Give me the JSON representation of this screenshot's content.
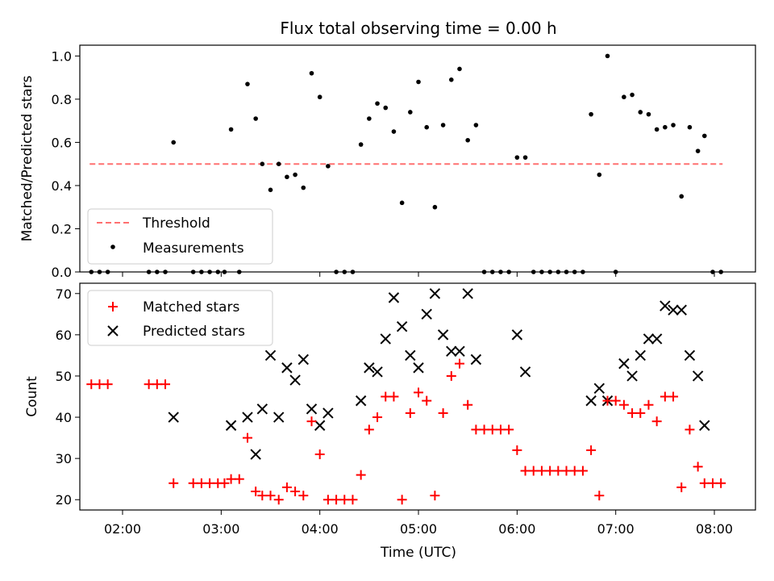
{
  "colors": {
    "matched": "#ff0000",
    "predicted": "#000000",
    "threshold": "#ff7070",
    "measurement": "#000000"
  },
  "chart_data": [
    {
      "panel": "top",
      "type": "scatter",
      "title": "Flux total observing time = 0.00 h",
      "xlabel": "",
      "ylabel": "Matched/Predicted stars",
      "xlim": [
        "01:34",
        "08:25"
      ],
      "ylim": [
        0,
        1.05
      ],
      "yticks": [
        "0.0",
        "0.2",
        "0.4",
        "0.6",
        "0.8",
        "1.0"
      ],
      "legend": {
        "placement": "lower-left",
        "entries": [
          "Threshold",
          "Measurements"
        ]
      },
      "threshold": {
        "label": "Threshold",
        "value": 0.5,
        "x": [
          "01:40",
          "08:05"
        ]
      },
      "series": [
        {
          "name": "Measurements",
          "points": [
            [
              "01:41",
              0
            ],
            [
              "01:46",
              0
            ],
            [
              "01:51",
              0
            ],
            [
              "02:16",
              0
            ],
            [
              "02:21",
              0
            ],
            [
              "02:26",
              0
            ],
            [
              "02:31",
              0.6
            ],
            [
              "02:43",
              0
            ],
            [
              "02:48",
              0
            ],
            [
              "02:53",
              0
            ],
            [
              "02:58",
              0
            ],
            [
              "03:02",
              0
            ],
            [
              "03:06",
              0.66
            ],
            [
              "03:11",
              0
            ],
            [
              "03:16",
              0.87
            ],
            [
              "03:21",
              0.71
            ],
            [
              "03:25",
              0.5
            ],
            [
              "03:30",
              0.38
            ],
            [
              "03:35",
              0.5
            ],
            [
              "03:40",
              0.44
            ],
            [
              "03:45",
              0.45
            ],
            [
              "03:50",
              0.39
            ],
            [
              "03:55",
              0.92
            ],
            [
              "04:00",
              0.81
            ],
            [
              "04:05",
              0.49
            ],
            [
              "04:10",
              0
            ],
            [
              "04:15",
              0
            ],
            [
              "04:20",
              0
            ],
            [
              "04:25",
              0.59
            ],
            [
              "04:30",
              0.71
            ],
            [
              "04:35",
              0.78
            ],
            [
              "04:40",
              0.76
            ],
            [
              "04:45",
              0.65
            ],
            [
              "04:50",
              0.32
            ],
            [
              "04:55",
              0.74
            ],
            [
              "05:00",
              0.88
            ],
            [
              "05:05",
              0.67
            ],
            [
              "05:10",
              0.3
            ],
            [
              "05:15",
              0.68
            ],
            [
              "05:20",
              0.89
            ],
            [
              "05:25",
              0.94
            ],
            [
              "05:30",
              0.61
            ],
            [
              "05:35",
              0.68
            ],
            [
              "05:40",
              0
            ],
            [
              "05:45",
              0
            ],
            [
              "05:50",
              0
            ],
            [
              "05:55",
              0
            ],
            [
              "06:00",
              0.53
            ],
            [
              "06:05",
              0.53
            ],
            [
              "06:10",
              0
            ],
            [
              "06:15",
              0
            ],
            [
              "06:20",
              0
            ],
            [
              "06:25",
              0
            ],
            [
              "06:30",
              0
            ],
            [
              "06:35",
              0
            ],
            [
              "06:40",
              0
            ],
            [
              "06:45",
              0.73
            ],
            [
              "06:50",
              0.45
            ],
            [
              "06:55",
              1.0
            ],
            [
              "07:00",
              0
            ],
            [
              "07:05",
              0.81
            ],
            [
              "07:10",
              0.82
            ],
            [
              "07:15",
              0.74
            ],
            [
              "07:20",
              0.73
            ],
            [
              "07:25",
              0.66
            ],
            [
              "07:30",
              0.67
            ],
            [
              "07:35",
              0.68
            ],
            [
              "07:40",
              0.35
            ],
            [
              "07:45",
              0.67
            ],
            [
              "07:50",
              0.56
            ],
            [
              "07:54",
              0.63
            ],
            [
              "07:59",
              0
            ],
            [
              "08:04",
              0
            ]
          ]
        }
      ]
    },
    {
      "panel": "bottom",
      "type": "scatter",
      "title": "",
      "xlabel": "Time (UTC)",
      "ylabel": "Count",
      "xlim": [
        "01:34",
        "08:25"
      ],
      "ylim": [
        17.5,
        72.5
      ],
      "xticks": [
        "02:00",
        "03:00",
        "04:00",
        "05:00",
        "06:00",
        "07:00",
        "08:00"
      ],
      "yticks": [
        "20",
        "30",
        "40",
        "50",
        "60",
        "70"
      ],
      "legend": {
        "placement": "top-left",
        "entries": [
          "Matched stars",
          "Predicted stars"
        ]
      },
      "series": [
        {
          "name": "Matched stars",
          "marker": "plus",
          "points": [
            [
              "01:41",
              48
            ],
            [
              "01:46",
              48
            ],
            [
              "01:51",
              48
            ],
            [
              "02:16",
              48
            ],
            [
              "02:21",
              48
            ],
            [
              "02:26",
              48
            ],
            [
              "02:31",
              24
            ],
            [
              "02:43",
              24
            ],
            [
              "02:48",
              24
            ],
            [
              "02:53",
              24
            ],
            [
              "02:58",
              24
            ],
            [
              "03:02",
              24
            ],
            [
              "03:06",
              25
            ],
            [
              "03:11",
              25
            ],
            [
              "03:16",
              35
            ],
            [
              "03:21",
              22
            ],
            [
              "03:25",
              21
            ],
            [
              "03:30",
              21
            ],
            [
              "03:35",
              20
            ],
            [
              "03:40",
              23
            ],
            [
              "03:45",
              22
            ],
            [
              "03:50",
              21
            ],
            [
              "03:55",
              39
            ],
            [
              "04:00",
              31
            ],
            [
              "04:05",
              20
            ],
            [
              "04:10",
              20
            ],
            [
              "04:15",
              20
            ],
            [
              "04:20",
              20
            ],
            [
              "04:25",
              26
            ],
            [
              "04:30",
              37
            ],
            [
              "04:35",
              40
            ],
            [
              "04:40",
              45
            ],
            [
              "04:45",
              45
            ],
            [
              "04:50",
              20
            ],
            [
              "04:55",
              41
            ],
            [
              "05:00",
              46
            ],
            [
              "05:05",
              44
            ],
            [
              "05:10",
              21
            ],
            [
              "05:15",
              41
            ],
            [
              "05:20",
              50
            ],
            [
              "05:25",
              53
            ],
            [
              "05:30",
              43
            ],
            [
              "05:35",
              37
            ],
            [
              "05:40",
              37
            ],
            [
              "05:45",
              37
            ],
            [
              "05:50",
              37
            ],
            [
              "05:55",
              37
            ],
            [
              "06:00",
              32
            ],
            [
              "06:05",
              27
            ],
            [
              "06:10",
              27
            ],
            [
              "06:15",
              27
            ],
            [
              "06:20",
              27
            ],
            [
              "06:25",
              27
            ],
            [
              "06:30",
              27
            ],
            [
              "06:35",
              27
            ],
            [
              "06:40",
              27
            ],
            [
              "06:45",
              32
            ],
            [
              "06:50",
              21
            ],
            [
              "06:55",
              44
            ],
            [
              "07:00",
              44
            ],
            [
              "07:05",
              43
            ],
            [
              "07:10",
              41
            ],
            [
              "07:15",
              41
            ],
            [
              "07:20",
              43
            ],
            [
              "07:25",
              39
            ],
            [
              "07:30",
              45
            ],
            [
              "07:35",
              45
            ],
            [
              "07:40",
              23
            ],
            [
              "07:45",
              37
            ],
            [
              "07:50",
              28
            ],
            [
              "07:54",
              24
            ],
            [
              "07:59",
              24
            ],
            [
              "08:04",
              24
            ]
          ]
        },
        {
          "name": "Predicted stars",
          "marker": "x",
          "points": [
            [
              "02:31",
              40
            ],
            [
              "03:06",
              38
            ],
            [
              "03:16",
              40
            ],
            [
              "03:21",
              31
            ],
            [
              "03:25",
              42
            ],
            [
              "03:30",
              55
            ],
            [
              "03:35",
              40
            ],
            [
              "03:40",
              52
            ],
            [
              "03:45",
              49
            ],
            [
              "03:50",
              54
            ],
            [
              "03:55",
              42
            ],
            [
              "04:00",
              38
            ],
            [
              "04:05",
              41
            ],
            [
              "04:25",
              44
            ],
            [
              "04:30",
              52
            ],
            [
              "04:35",
              51
            ],
            [
              "04:40",
              59
            ],
            [
              "04:45",
              69
            ],
            [
              "04:50",
              62
            ],
            [
              "04:55",
              55
            ],
            [
              "05:00",
              52
            ],
            [
              "05:05",
              65
            ],
            [
              "05:10",
              70
            ],
            [
              "05:15",
              60
            ],
            [
              "05:20",
              56
            ],
            [
              "05:25",
              56
            ],
            [
              "05:30",
              70
            ],
            [
              "05:35",
              54
            ],
            [
              "06:00",
              60
            ],
            [
              "06:05",
              51
            ],
            [
              "06:45",
              44
            ],
            [
              "06:50",
              47
            ],
            [
              "06:55",
              44
            ],
            [
              "07:05",
              53
            ],
            [
              "07:10",
              50
            ],
            [
              "07:15",
              55
            ],
            [
              "07:20",
              59
            ],
            [
              "07:25",
              59
            ],
            [
              "07:30",
              67
            ],
            [
              "07:35",
              66
            ],
            [
              "07:40",
              66
            ],
            [
              "07:45",
              55
            ],
            [
              "07:50",
              50
            ],
            [
              "07:54",
              38
            ]
          ]
        }
      ]
    }
  ]
}
